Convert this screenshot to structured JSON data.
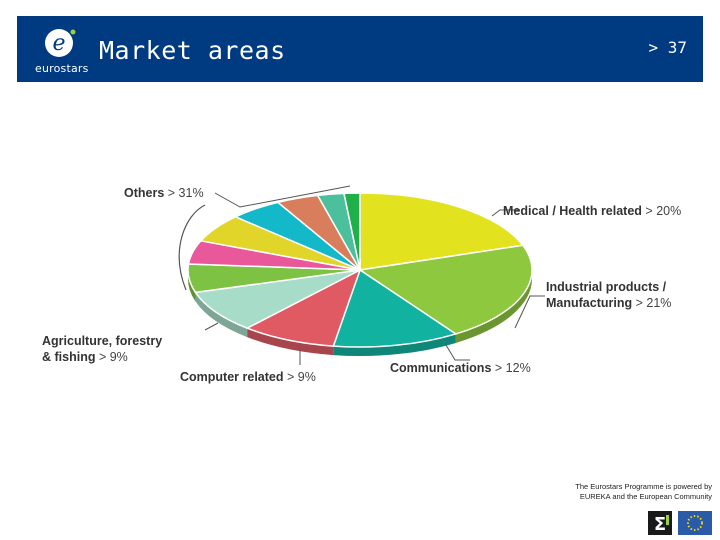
{
  "header": {
    "logo_text": "eurostars",
    "title": "Market areas",
    "slide_number": "> 37"
  },
  "chart_data": {
    "type": "pie",
    "slices": [
      {
        "label": "Medical / Health related",
        "value": 20,
        "color": "#e2e21f"
      },
      {
        "label": "Industrial products / Manufacturing",
        "value": 21,
        "color": "#8ec83e"
      },
      {
        "label": "Communications",
        "value": 12,
        "color": "#12b2a0"
      },
      {
        "label": "Computer related",
        "value": 9,
        "color": "#e05a64"
      },
      {
        "label": "Agriculture, forestry & fishing",
        "value": 9,
        "color": "#a7ddc8"
      },
      {
        "label": "",
        "value": 6,
        "color": "#7dc242"
      },
      {
        "label": "",
        "value": 5,
        "color": "#e8589a"
      },
      {
        "label": "",
        "value": 6,
        "color": "#e2d52a"
      },
      {
        "label": "",
        "value": 5,
        "color": "#13b8c9"
      },
      {
        "label": "",
        "value": 4,
        "color": "#d97e5c"
      },
      {
        "label": "",
        "value": 2.5,
        "color": "#4cbf9c"
      },
      {
        "label": "",
        "value": 1.5,
        "color": "#20b04a"
      }
    ],
    "labels": {
      "medical": {
        "name": "Medical / Health related",
        "pct": "> 20%"
      },
      "industrial_line1": "Industrial products /",
      "industrial_line2": "Manufacturing",
      "industrial_pct": "> 21%",
      "communications": {
        "name": "Communications",
        "pct": "> 12%"
      },
      "computer": {
        "name": "Computer related",
        "pct": "> 9%"
      },
      "agriculture_line1": "Agriculture, forestry",
      "agriculture_line2": "& fishing",
      "agriculture_pct": "> 9%",
      "others": {
        "name": "Others",
        "pct": "> 31%"
      }
    }
  },
  "footer": {
    "line1": "The Eurostars Programme is powered by",
    "line2": "EUREKA and the European Community"
  }
}
